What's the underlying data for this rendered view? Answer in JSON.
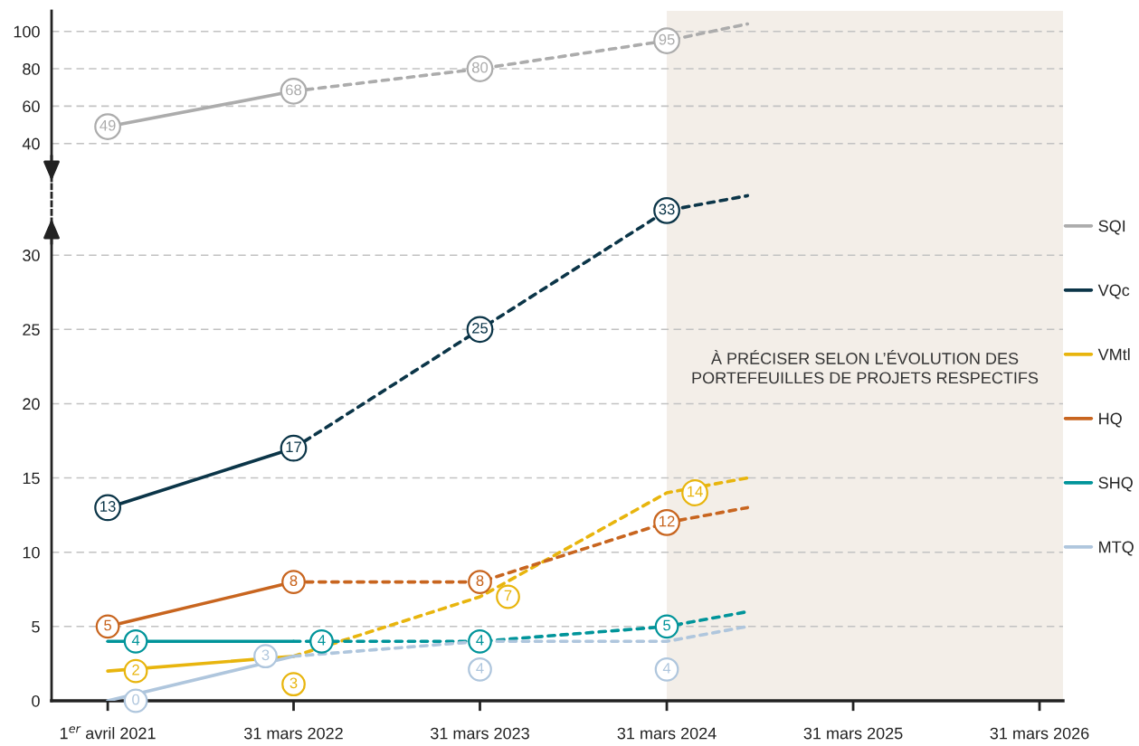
{
  "chart_data": [
    {
      "type": "line",
      "xlim": [
        "2020-12-12",
        "2026-05-16"
      ],
      "ylim": [
        20,
        111
      ],
      "yticks": [
        40,
        60,
        80,
        100
      ],
      "tick_labels": "y",
      "grid": "y",
      "legend": "right",
      "marker": "circle",
      "bands": [
        {
          "axis": "x",
          "from": "2024-03-31",
          "to": "2026-05-16",
          "color": "#f3eee8"
        }
      ],
      "series": [
        {
          "name": "SQI",
          "color": "#acacac",
          "line_style": "solid",
          "x": [
            "2021-04-01",
            "2022-03-31"
          ],
          "values": [
            49,
            68
          ],
          "value_labels": [
            "49",
            "68"
          ]
        },
        {
          "color": "#acacac",
          "line_style": "dashed",
          "x": [
            "2022-03-31",
            "2023-03-31",
            "2024-03-31",
            "2024-09-05"
          ],
          "values": [
            68,
            80,
            95,
            104
          ],
          "value_labels": [
            null,
            "80",
            "95",
            null
          ]
        }
      ]
    },
    {
      "type": "line",
      "xlim": [
        "2020-12-12",
        "2026-05-16"
      ],
      "ylim": [
        0,
        35
      ],
      "yticks": [
        0,
        5,
        10,
        15,
        20,
        25,
        30
      ],
      "grid": "y",
      "legend": "right",
      "marker": "circle",
      "xticks": [
        {
          "value": "2021-04-01",
          "label": "1$^{er}$ avril 2021"
        },
        {
          "value": "2022-03-31",
          "label": "31 mars 2022"
        },
        {
          "value": "2023-03-31",
          "label": "31 mars 2023"
        },
        {
          "value": "2024-03-31",
          "label": "31 mars 2024"
        },
        {
          "value": "2025-03-31",
          "label": "31 mars 2025"
        },
        {
          "value": "2026-03-31",
          "label": "31 mars 2026"
        }
      ],
      "bands": [
        {
          "axis": "x",
          "from": "2024-03-31",
          "to": "2026-05-16",
          "color": "#f3eee8",
          "label": "À PRÉCISER SELON L’ÉVOLUTION DES\nPORTEFEUILLES DE PROJETS RESPECTIFS"
        }
      ],
      "series": [
        {
          "name": "VQc",
          "color": "#0b3548",
          "line_style": "solid",
          "x": [
            "2021-04-01",
            "2022-03-31"
          ],
          "values": [
            13,
            17
          ],
          "value_labels": [
            "13",
            "17"
          ]
        },
        {
          "color": "#0b3548",
          "line_style": "dashed",
          "x": [
            "2022-03-31",
            "2023-03-31",
            "2024-03-31",
            "2024-09-05"
          ],
          "values": [
            17,
            25,
            33,
            34
          ],
          "value_labels": [
            null,
            "25",
            "33",
            null
          ]
        },
        {
          "name": "VMtl",
          "color": "#e8b50e",
          "line_style": "solid",
          "marker": "none",
          "x": [
            "2021-04-01",
            "2022-03-31"
          ],
          "values": [
            2,
            3
          ],
          "value_labels": [
            "2",
            "3"
          ]
        },
        {
          "color": "#e8b50e",
          "line_style": "dashed",
          "marker": "none",
          "x": [
            "2022-03-31",
            "2023-03-31",
            "2024-03-31",
            "2024-09-05"
          ],
          "values": [
            3,
            7,
            14,
            15
          ],
          "value_labels": [
            null,
            "7",
            "14",
            null
          ]
        },
        {
          "name": "HQ",
          "color": "#c8651f",
          "line_style": "solid",
          "x": [
            "2021-04-01",
            "2022-03-31"
          ],
          "values": [
            5,
            8
          ],
          "value_labels": [
            "5",
            "8"
          ]
        },
        {
          "color": "#c8651f",
          "line_style": "dashed",
          "x": [
            "2022-03-31",
            "2023-03-31",
            "2024-03-31",
            "2024-09-05"
          ],
          "values": [
            8,
            8,
            12,
            13
          ],
          "value_labels": [
            null,
            "8",
            "12",
            null
          ]
        },
        {
          "name": "SHQ",
          "color": "#00949a",
          "line_style": "solid",
          "marker": "none",
          "x": [
            "2021-04-01",
            "2022-03-31"
          ],
          "values": [
            4,
            4
          ],
          "value_labels": [
            "4",
            "4"
          ]
        },
        {
          "color": "#00949a",
          "line_style": "dashed",
          "x": [
            "2022-03-31",
            "2023-03-31",
            "2024-03-31",
            "2024-09-05"
          ],
          "values": [
            4,
            4,
            5,
            6
          ],
          "value_labels": [
            null,
            "4",
            "5",
            null
          ]
        },
        {
          "name": "MTQ",
          "color": "#afc6dd",
          "line_style": "solid",
          "marker": "none",
          "x": [
            "2021-04-01",
            "2022-03-31"
          ],
          "values": [
            0,
            3
          ],
          "value_labels": [
            "0",
            "3"
          ]
        },
        {
          "color": "#afc6dd",
          "line_style": "dashed",
          "marker": "none",
          "x": [
            "2022-03-31",
            "2023-03-31",
            "2024-03-31",
            "2024-09-05"
          ],
          "values": [
            3,
            4,
            4,
            5
          ],
          "value_labels": [
            null,
            "4",
            "4",
            null
          ]
        }
      ]
    }
  ]
}
